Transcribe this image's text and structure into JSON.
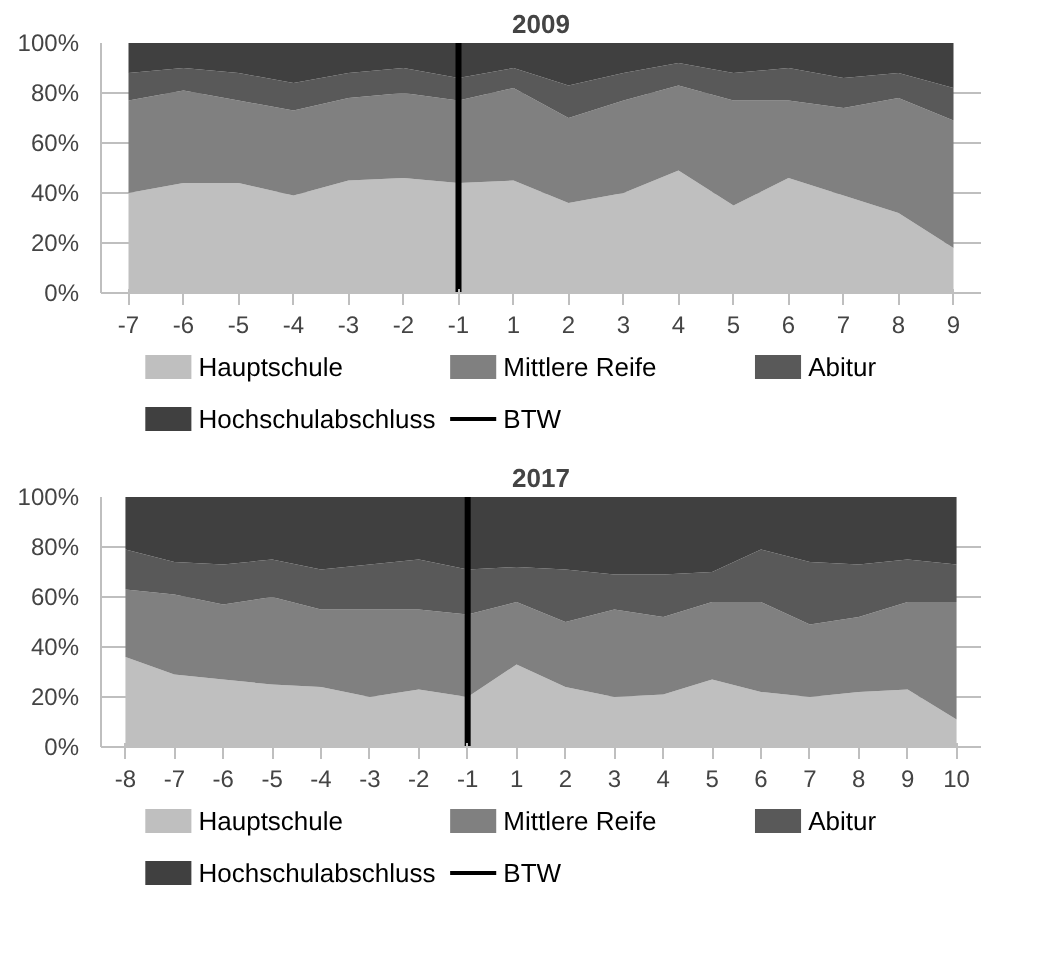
{
  "chart_data": [
    {
      "type": "area",
      "stacked": true,
      "title": "2009",
      "categories": [
        "-7",
        "-6",
        "-5",
        "-4",
        "-3",
        "-2",
        "-1",
        "1",
        "2",
        "3",
        "4",
        "5",
        "6",
        "7",
        "8",
        "9"
      ],
      "series": [
        {
          "name": "Hauptschule",
          "color": "#bfbfbf",
          "values": [
            40,
            44,
            44,
            39,
            45,
            46,
            44,
            45,
            36,
            40,
            49,
            35,
            46,
            39,
            32,
            18
          ]
        },
        {
          "name": "Mittlere Reife",
          "color": "#808080",
          "values": [
            37,
            37,
            33,
            34,
            33,
            34,
            33,
            37,
            34,
            37,
            34,
            42,
            31,
            35,
            46,
            51
          ]
        },
        {
          "name": "Abitur",
          "color": "#595959",
          "values": [
            11,
            9,
            11,
            11,
            10,
            10,
            9,
            8,
            13,
            11,
            9,
            11,
            13,
            12,
            10,
            13
          ]
        },
        {
          "name": "Hochschulabschluss",
          "color": "#404040",
          "values": [
            12,
            10,
            12,
            16,
            12,
            10,
            14,
            10,
            17,
            12,
            8,
            12,
            10,
            14,
            12,
            18
          ]
        }
      ],
      "ylim": [
        0,
        100
      ],
      "yticks": [
        {
          "value": 0,
          "label": "0%"
        },
        {
          "value": 20,
          "label": "20%"
        },
        {
          "value": 40,
          "label": "40%"
        },
        {
          "value": 60,
          "label": "60%"
        },
        {
          "value": 80,
          "label": "80%"
        },
        {
          "value": 100,
          "label": "100%"
        }
      ],
      "ref_lines": [
        {
          "axis": "x",
          "value": "-1",
          "label": "BTW",
          "color": "#000000"
        }
      ],
      "grid": "y",
      "legend": "bottom"
    },
    {
      "type": "area",
      "stacked": true,
      "title": "2017",
      "categories": [
        "-8",
        "-7",
        "-6",
        "-5",
        "-4",
        "-3",
        "-2",
        "-1",
        "1",
        "2",
        "3",
        "4",
        "5",
        "6",
        "7",
        "8",
        "9",
        "10"
      ],
      "series": [
        {
          "name": "Hauptschule",
          "color": "#bfbfbf",
          "values": [
            36,
            29,
            27,
            25,
            24,
            20,
            23,
            20,
            33,
            24,
            20,
            21,
            27,
            22,
            20,
            22,
            23,
            11
          ]
        },
        {
          "name": "Mittlere Reife",
          "color": "#808080",
          "values": [
            27,
            32,
            30,
            35,
            31,
            35,
            32,
            33,
            25,
            26,
            35,
            31,
            31,
            36,
            29,
            30,
            35,
            47
          ]
        },
        {
          "name": "Abitur",
          "color": "#595959",
          "values": [
            16,
            13,
            16,
            15,
            16,
            18,
            20,
            18,
            14,
            21,
            14,
            17,
            12,
            21,
            25,
            21,
            17,
            15
          ]
        },
        {
          "name": "Hochschulabschluss",
          "color": "#404040",
          "values": [
            21,
            26,
            27,
            25,
            29,
            27,
            25,
            29,
            28,
            29,
            31,
            31,
            30,
            21,
            26,
            27,
            25,
            27
          ]
        }
      ],
      "ylim": [
        0,
        100
      ],
      "yticks": [
        {
          "value": 0,
          "label": "0%"
        },
        {
          "value": 20,
          "label": "20%"
        },
        {
          "value": 40,
          "label": "40%"
        },
        {
          "value": 60,
          "label": "60%"
        },
        {
          "value": 80,
          "label": "80%"
        },
        {
          "value": 100,
          "label": "100%"
        }
      ],
      "ref_lines": [
        {
          "axis": "x",
          "value": "-1",
          "label": "BTW",
          "color": "#000000"
        }
      ],
      "grid": "y",
      "legend": "bottom"
    }
  ]
}
